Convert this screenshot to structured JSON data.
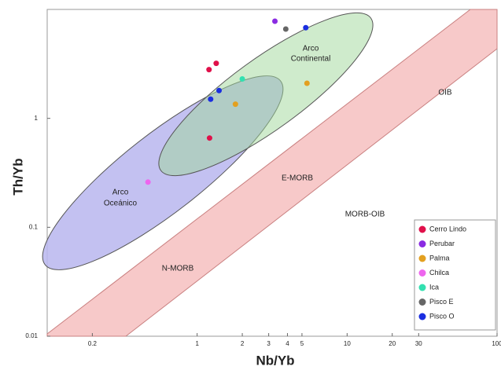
{
  "chart_data": {
    "type": "scatter",
    "x_label": "Nb/Yb",
    "y_label": "Th/Yb",
    "log_x": true,
    "log_y": true,
    "xlim": [
      0.1,
      100
    ],
    "ylim": [
      0.01,
      10
    ],
    "xticks": [
      0.2,
      1,
      2,
      3,
      4,
      5,
      10,
      20,
      30,
      100
    ],
    "yticks": [
      0.01,
      0.1,
      1
    ],
    "legend_position": "lower right",
    "annotations": [
      [
        "Arco",
        "Continental"
      ],
      [
        "Arco",
        "Oceánico"
      ],
      [
        "OIB"
      ],
      [
        "E-MORB"
      ],
      [
        "N-MORB"
      ],
      [
        "MORB-OIB"
      ]
    ],
    "series": [
      {
        "name": "Cerro Lindo",
        "color": "#e0104a",
        "x": [
          1.2,
          1.34,
          1.21
        ],
        "values": [
          2.8,
          3.2,
          0.66
        ]
      },
      {
        "name": "Perubar",
        "color": "#8a2be2",
        "x": [
          3.3
        ],
        "values": [
          7.8
        ]
      },
      {
        "name": "Palma",
        "color": "#e3a020",
        "x": [
          5.4,
          1.8
        ],
        "values": [
          2.1,
          1.35
        ]
      },
      {
        "name": "Chilca",
        "color": "#ee66ee",
        "x": [
          0.47
        ],
        "values": [
          0.26
        ]
      },
      {
        "name": "Ica",
        "color": "#33e0b0",
        "x": [
          2.0
        ],
        "values": [
          2.3
        ]
      },
      {
        "name": "Pisco E",
        "color": "#666666",
        "x": [
          3.9
        ],
        "values": [
          6.6
        ]
      },
      {
        "name": "Pisco O",
        "color": "#1a2ee0",
        "x": [
          5.3,
          1.23,
          1.4
        ],
        "values": [
          6.8,
          1.5,
          1.8
        ]
      }
    ]
  }
}
